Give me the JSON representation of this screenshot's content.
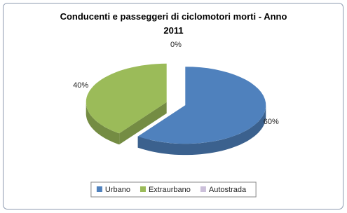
{
  "chart_data": {
    "type": "pie3d",
    "title": "Conducenti e passeggeri di ciclomotori morti - Anno 2011",
    "categories": [
      "Urbano",
      "Extraurbano",
      "Autostrada"
    ],
    "values": [
      60,
      40,
      0
    ],
    "value_labels": [
      "60%",
      "40%",
      "0%"
    ],
    "colors": [
      "#4f81bd",
      "#9bbb59",
      "#ccc0da"
    ],
    "legend": "bottom"
  }
}
